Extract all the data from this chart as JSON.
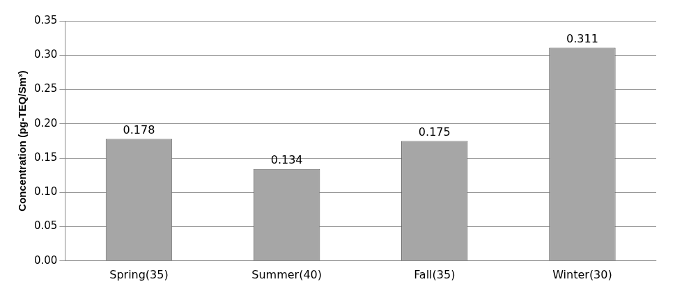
{
  "chart_data": {
    "type": "bar",
    "ylabel": "Concentration (pg-TEQ/Sm³)",
    "categories": [
      "Spring(35)",
      "Summer(40)",
      "Fall(35)",
      "Winter(30)"
    ],
    "values": [
      0.178,
      0.134,
      0.175,
      0.311
    ],
    "color": "#a6a6a6",
    "ylim": [
      0,
      0.35
    ],
    "yticks": [
      {
        "value": 0,
        "label": "0.00"
      },
      0.05,
      {
        "value": 0.1,
        "label": "0.10"
      },
      0.15,
      {
        "value": 0.2,
        "label": "0.20"
      },
      0.25,
      {
        "value": 0.3,
        "label": "0.30"
      },
      0.35
    ],
    "grid": "y",
    "data_labels": true
  }
}
